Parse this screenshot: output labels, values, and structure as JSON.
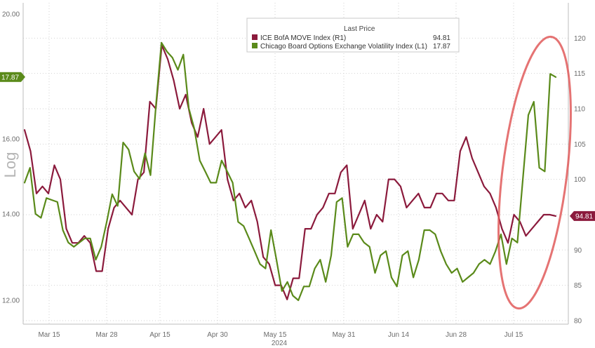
{
  "chart_data": {
    "type": "line",
    "legend_title": "Last Price",
    "ylabel_left": "Log",
    "x_year_label": "2024",
    "legend_position": "top-right",
    "grid": true,
    "x_tick_labels": [
      "Mar 15",
      "Mar 28",
      "Apr 15",
      "Apr 30",
      "May 15",
      "May 31",
      "Jun 14",
      "Jun 28",
      "Jul 15"
    ],
    "y_left": {
      "scale": "log",
      "ticks": [
        "12.00",
        "14.00",
        "16.00",
        "20.00"
      ],
      "tick_values": [
        12,
        14,
        16,
        20
      ],
      "range": [
        11.5,
        20.4
      ]
    },
    "y_right": {
      "ticks": [
        80,
        85,
        90,
        95,
        100,
        105,
        110,
        115,
        120
      ],
      "range": [
        79.5,
        125
      ]
    },
    "badges": [
      {
        "series": 1,
        "label": "17.87",
        "value": 17.87
      },
      {
        "series": 0,
        "label": "94.81",
        "value": 94.81
      }
    ],
    "series": [
      {
        "name": "ICE BofA MOVE Index",
        "axis_tag": "(R1)",
        "last_label": "94.81",
        "axis": "right",
        "color": "#8b1a3c",
        "values": [
          107,
          104,
          98,
          99,
          98,
          102,
          100,
          93,
          91,
          91,
          92,
          91,
          87,
          87,
          93,
          96,
          97,
          96,
          95,
          100,
          101,
          111,
          110,
          119,
          117,
          114,
          110,
          112,
          108,
          106,
          110,
          105,
          106,
          107,
          100,
          97,
          98,
          96,
          97,
          94,
          89,
          88,
          85,
          85,
          83,
          86,
          86,
          93,
          93,
          95,
          96,
          98,
          98,
          101,
          102,
          93,
          95,
          97,
          93,
          95,
          94,
          100,
          100,
          99,
          96,
          97,
          98,
          96,
          96,
          98,
          98,
          97,
          97,
          104,
          106,
          103,
          101,
          99,
          98,
          96,
          93,
          91,
          95,
          94,
          92,
          93,
          94,
          95,
          95,
          94.81
        ]
      },
      {
        "name": "Chicago Board Options Exchange Volatility Index",
        "axis_tag": "(L1)",
        "last_label": "17.87",
        "axis": "left",
        "color": "#5a8a1a",
        "values": [
          14.8,
          15.2,
          14.0,
          13.9,
          14.4,
          14.35,
          14.3,
          13.6,
          13.3,
          13.2,
          13.3,
          13.4,
          13.4,
          12.9,
          13.2,
          13.8,
          14.5,
          14.2,
          15.9,
          15.7,
          15.1,
          14.9,
          15.6,
          15.0,
          17.0,
          19.0,
          18.7,
          18.5,
          18.1,
          18.6,
          16.9,
          16.3,
          15.4,
          15.1,
          14.8,
          14.8,
          15.4,
          15.1,
          14.8,
          13.8,
          13.7,
          13.4,
          13.1,
          12.8,
          12.7,
          13.6,
          12.9,
          12.2,
          12.4,
          12.1,
          12.0,
          12.3,
          12.3,
          12.7,
          12.9,
          12.4,
          13.0,
          14.3,
          14.4,
          13.2,
          13.5,
          13.5,
          13.3,
          13.2,
          12.6,
          13.0,
          13.1,
          12.5,
          12.3,
          13.0,
          13.1,
          12.5,
          12.9,
          13.6,
          13.6,
          13.5,
          13.1,
          12.8,
          12.6,
          12.7,
          12.4,
          12.5,
          12.6,
          12.8,
          12.9,
          12.8,
          13.1,
          13.5,
          12.8,
          13.4,
          13.3,
          14.9,
          16.7,
          17.1,
          15.2,
          15.1,
          17.97,
          17.87
        ]
      }
    ]
  },
  "highlight": {
    "shape": "ellipse",
    "color": "#e05a5a",
    "note": "recent spike circled"
  }
}
